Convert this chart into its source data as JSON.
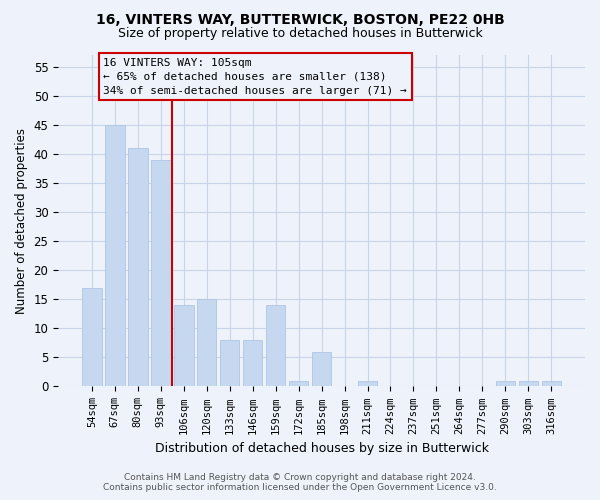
{
  "title_line1": "16, VINTERS WAY, BUTTERWICK, BOSTON, PE22 0HB",
  "title_line2": "Size of property relative to detached houses in Butterwick",
  "xlabel": "Distribution of detached houses by size in Butterwick",
  "ylabel": "Number of detached properties",
  "categories": [
    "54sqm",
    "67sqm",
    "80sqm",
    "93sqm",
    "106sqm",
    "120sqm",
    "133sqm",
    "146sqm",
    "159sqm",
    "172sqm",
    "185sqm",
    "198sqm",
    "211sqm",
    "224sqm",
    "237sqm",
    "251sqm",
    "264sqm",
    "277sqm",
    "290sqm",
    "303sqm",
    "316sqm"
  ],
  "values": [
    17,
    45,
    41,
    39,
    14,
    15,
    8,
    8,
    14,
    1,
    6,
    0,
    1,
    0,
    0,
    0,
    0,
    0,
    1,
    1,
    1
  ],
  "bar_color": "#c5d8f0",
  "bar_edge_color": "#aec6e8",
  "grid_color": "#c8d4e8",
  "annotation_box_text": "16 VINTERS WAY: 105sqm\n← 65% of detached houses are smaller (138)\n34% of semi-detached houses are larger (71) →",
  "annotation_box_color": "#cc0000",
  "vline_color": "#cc0000",
  "ylim": [
    0,
    57
  ],
  "yticks": [
    0,
    5,
    10,
    15,
    20,
    25,
    30,
    35,
    40,
    45,
    50,
    55
  ],
  "footer_line1": "Contains HM Land Registry data © Crown copyright and database right 2024.",
  "footer_line2": "Contains public sector information licensed under the Open Government Licence v3.0.",
  "background_color": "#eef2fa"
}
